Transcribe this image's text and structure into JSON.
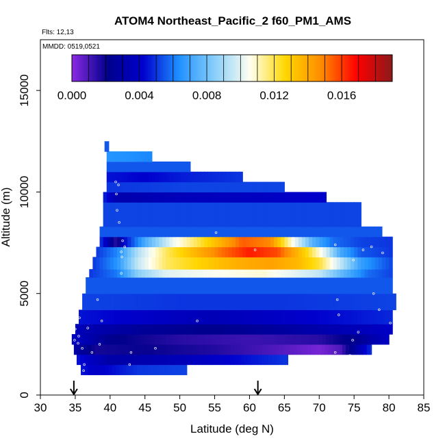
{
  "chart_data": {
    "type": "heatmap",
    "title": "ATOM4 Northeast_Pacific_2 f60_PM1_AMS",
    "flights_label": "Flts: 12,13",
    "dates_label": "MMDD: 0519,0521",
    "xlabel": "Latitude (deg N)",
    "ylabel": "Altitude (m)",
    "xlim": [
      30,
      85
    ],
    "ylim": [
      0,
      17500
    ],
    "x_ticks": [
      "30",
      "35",
      "40",
      "45",
      "50",
      "55",
      "60",
      "65",
      "70",
      "75",
      "80",
      "85"
    ],
    "y_ticks": [
      "0",
      "5000",
      "10000",
      "15000"
    ],
    "colorbar": {
      "range": [
        0,
        0.019
      ],
      "tick_labels": [
        "0.000",
        "0.004",
        "0.008",
        "0.012",
        "0.016"
      ],
      "tick_values": [
        0,
        0.004,
        0.008,
        0.012,
        0.016
      ],
      "stops": [
        "#8a2be2",
        "#00008b",
        "#0000cd",
        "#1e90ff",
        "#87cefa",
        "#fffff0",
        "#ffd700",
        "#ff8c00",
        "#ff0000",
        "#8b1a1a"
      ]
    },
    "arrows_at_latitude": [
      34.8,
      61.2
    ],
    "bands": [
      {
        "alt": [
          1000,
          1500
        ],
        "lat": [
          35.8,
          51.0
        ],
        "profile": [
          [
            35.8,
            0.0045
          ],
          [
            38,
            0.004
          ],
          [
            44,
            0.005
          ],
          [
            51,
            0.0052
          ]
        ]
      },
      {
        "alt": [
          1500,
          2000
        ],
        "lat": [
          35.2,
          65.5
        ],
        "profile": [
          [
            35.2,
            0.0045
          ],
          [
            40,
            0.003
          ],
          [
            50,
            0.0035
          ],
          [
            60,
            0.0045
          ],
          [
            65.5,
            0.005
          ]
        ]
      },
      {
        "alt": [
          2000,
          2500
        ],
        "lat": [
          34.8,
          77.5
        ],
        "profile": [
          [
            34.8,
            0.003
          ],
          [
            38,
            0.0018
          ],
          [
            45,
            0.002
          ],
          [
            55,
            0.0016
          ],
          [
            65,
            0.0008
          ],
          [
            70,
            0.0003
          ],
          [
            73,
            0.0009
          ],
          [
            77.5,
            0.005
          ]
        ]
      },
      {
        "alt": [
          2500,
          3000
        ],
        "lat": [
          34.5,
          80.0
        ],
        "profile": [
          [
            34.5,
            0.004
          ],
          [
            40,
            0.0022
          ],
          [
            50,
            0.0015
          ],
          [
            60,
            0.0012
          ],
          [
            70,
            0.0015
          ],
          [
            76,
            0.0025
          ],
          [
            80,
            0.004
          ]
        ]
      },
      {
        "alt": [
          3000,
          3500
        ],
        "lat": [
          35.0,
          80.5
        ],
        "profile": [
          [
            35,
            0.0035
          ],
          [
            45,
            0.0025
          ],
          [
            55,
            0.0022
          ],
          [
            65,
            0.0028
          ],
          [
            75,
            0.0035
          ],
          [
            80.5,
            0.004
          ]
        ]
      },
      {
        "alt": [
          3500,
          4200
        ],
        "lat": [
          35.5,
          80.5
        ],
        "profile": [
          [
            35.5,
            0.0045
          ],
          [
            45,
            0.004
          ],
          [
            55,
            0.0035
          ],
          [
            65,
            0.004
          ],
          [
            75,
            0.0045
          ],
          [
            80.5,
            0.0048
          ]
        ]
      },
      {
        "alt": [
          4200,
          5000
        ],
        "lat": [
          36.0,
          81.0
        ],
        "profile": [
          [
            36,
            0.0052
          ],
          [
            50,
            0.005
          ],
          [
            65,
            0.005
          ],
          [
            81,
            0.0052
          ]
        ]
      },
      {
        "alt": [
          5000,
          5800
        ],
        "lat": [
          36.5,
          80.5
        ],
        "profile": [
          [
            36.5,
            0.0055
          ],
          [
            50,
            0.0055
          ],
          [
            65,
            0.0055
          ],
          [
            80.5,
            0.0055
          ]
        ]
      },
      {
        "alt": [
          5800,
          6200
        ],
        "lat": [
          37.0,
          80.5
        ],
        "profile": [
          [
            37,
            0.005
          ],
          [
            41,
            0.006
          ],
          [
            44,
            0.0085
          ],
          [
            48,
            0.01
          ],
          [
            55,
            0.0105
          ],
          [
            62,
            0.0108
          ],
          [
            70,
            0.0095
          ],
          [
            73,
            0.0078
          ],
          [
            77,
            0.0058
          ],
          [
            80.5,
            0.0052
          ]
        ]
      },
      {
        "alt": [
          6200,
          6800
        ],
        "lat": [
          37.5,
          80.5
        ],
        "profile": [
          [
            37.5,
            0.005
          ],
          [
            41,
            0.0065
          ],
          [
            44,
            0.0095
          ],
          [
            48,
            0.0118
          ],
          [
            53,
            0.0128
          ],
          [
            58,
            0.0138
          ],
          [
            63,
            0.0142
          ],
          [
            67,
            0.0135
          ],
          [
            70,
            0.0122
          ],
          [
            73,
            0.0095
          ],
          [
            76,
            0.0068
          ],
          [
            80.5,
            0.0052
          ]
        ]
      },
      {
        "alt": [
          6800,
          7300
        ],
        "lat": [
          38.0,
          80.5
        ],
        "profile": [
          [
            38,
            0.005
          ],
          [
            41,
            0.0062
          ],
          [
            44,
            0.0092
          ],
          [
            48,
            0.0118
          ],
          [
            52,
            0.0135
          ],
          [
            56,
            0.0152
          ],
          [
            60,
            0.0165
          ],
          [
            64,
            0.0158
          ],
          [
            68,
            0.0128
          ],
          [
            71,
            0.0098
          ],
          [
            73,
            0.0072
          ],
          [
            76,
            0.0055
          ],
          [
            80.5,
            0.005
          ]
        ]
      },
      {
        "alt": [
          7300,
          7800
        ],
        "lat": [
          38.5,
          80.5
        ],
        "profile": [
          [
            38.5,
            0.0052
          ],
          [
            41,
            0.0012
          ],
          [
            42,
            0.0042
          ],
          [
            45,
            0.0072
          ],
          [
            49,
            0.0102
          ],
          [
            53,
            0.0122
          ],
          [
            56,
            0.0138
          ],
          [
            59,
            0.0155
          ],
          [
            63,
            0.0148
          ],
          [
            66,
            0.0108
          ],
          [
            69,
            0.0075
          ],
          [
            72,
            0.0058
          ],
          [
            76,
            0.0052
          ],
          [
            80.5,
            0.005
          ]
        ]
      },
      {
        "alt": [
          7800,
          8300
        ],
        "lat": [
          38.5,
          79.0
        ],
        "profile": [
          [
            38.5,
            0.0055
          ],
          [
            50,
            0.0055
          ],
          [
            60,
            0.0055
          ],
          [
            79,
            0.0055
          ]
        ]
      },
      {
        "alt": [
          8300,
          9500
        ],
        "lat": [
          39.0,
          76.0
        ],
        "profile": [
          [
            39,
            0.0052
          ],
          [
            50,
            0.0052
          ],
          [
            60,
            0.0052
          ],
          [
            76,
            0.0052
          ]
        ]
      },
      {
        "alt": [
          9500,
          10000
        ],
        "lat": [
          39.0,
          71.0
        ],
        "profile": [
          [
            39,
            0.0048
          ],
          [
            41,
            0.0032
          ],
          [
            50,
            0.0036
          ],
          [
            60,
            0.0038
          ],
          [
            71,
            0.0042
          ]
        ]
      },
      {
        "alt": [
          10000,
          10500
        ],
        "lat": [
          39.5,
          65.0
        ],
        "profile": [
          [
            39.5,
            0.005
          ],
          [
            50,
            0.0052
          ],
          [
            65,
            0.0052
          ]
        ]
      },
      {
        "alt": [
          10500,
          11000
        ],
        "lat": [
          39.5,
          59.0
        ],
        "profile": [
          [
            39.5,
            0.0045
          ],
          [
            45,
            0.0042
          ],
          [
            50,
            0.0046
          ],
          [
            59,
            0.005
          ]
        ]
      },
      {
        "alt": [
          11000,
          11500
        ],
        "lat": [
          39.5,
          51.5
        ],
        "profile": [
          [
            39.5,
            0.0055
          ],
          [
            51.5,
            0.0055
          ]
        ]
      },
      {
        "alt": [
          11500,
          12000
        ],
        "lat": [
          39.5,
          46.0
        ],
        "profile": [
          [
            39.5,
            0.0065
          ],
          [
            46,
            0.0062
          ]
        ]
      },
      {
        "alt": [
          12000,
          12500
        ],
        "lat": [
          39.2,
          39.8
        ],
        "profile": [
          [
            39.2,
            0.0055
          ],
          [
            39.8,
            0.0055
          ]
        ]
      }
    ],
    "sample_points": [
      [
        40.8,
        10500
      ],
      [
        41.2,
        10350
      ],
      [
        40.9,
        9900
      ],
      [
        41.0,
        9100
      ],
      [
        41.3,
        8500
      ],
      [
        41.8,
        7600
      ],
      [
        41.6,
        7050
      ],
      [
        41.7,
        6800
      ],
      [
        42.1,
        7300
      ],
      [
        41.6,
        6000
      ],
      [
        55.2,
        8000
      ],
      [
        60.8,
        7150
      ],
      [
        72.3,
        7400
      ],
      [
        77.5,
        7300
      ],
      [
        76.3,
        7150
      ],
      [
        79.1,
        7000
      ],
      [
        77.8,
        5000
      ],
      [
        74.9,
        6650
      ],
      [
        72.6,
        4700
      ],
      [
        72.8,
        3950
      ],
      [
        78.6,
        4200
      ],
      [
        80.2,
        3550
      ],
      [
        75.6,
        3100
      ],
      [
        74.8,
        2700
      ],
      [
        72.3,
        2100
      ],
      [
        74.4,
        1950
      ],
      [
        79.8,
        1800
      ],
      [
        38.5,
        2500
      ],
      [
        36.0,
        2300
      ],
      [
        35.4,
        2550
      ],
      [
        35.0,
        3250
      ],
      [
        35.5,
        2900
      ],
      [
        36.8,
        3300
      ],
      [
        38.8,
        3650
      ],
      [
        37.4,
        2100
      ],
      [
        42.8,
        1500
      ],
      [
        36.2,
        1200
      ],
      [
        36.0,
        550
      ],
      [
        36.8,
        450
      ],
      [
        38.2,
        4700
      ],
      [
        35.6,
        3800
      ],
      [
        52.5,
        3650
      ],
      [
        46.5,
        2300
      ],
      [
        61.0,
        1000
      ],
      [
        43.0,
        2100
      ],
      [
        34.9,
        2700
      ],
      [
        36.3,
        1500
      ]
    ]
  }
}
